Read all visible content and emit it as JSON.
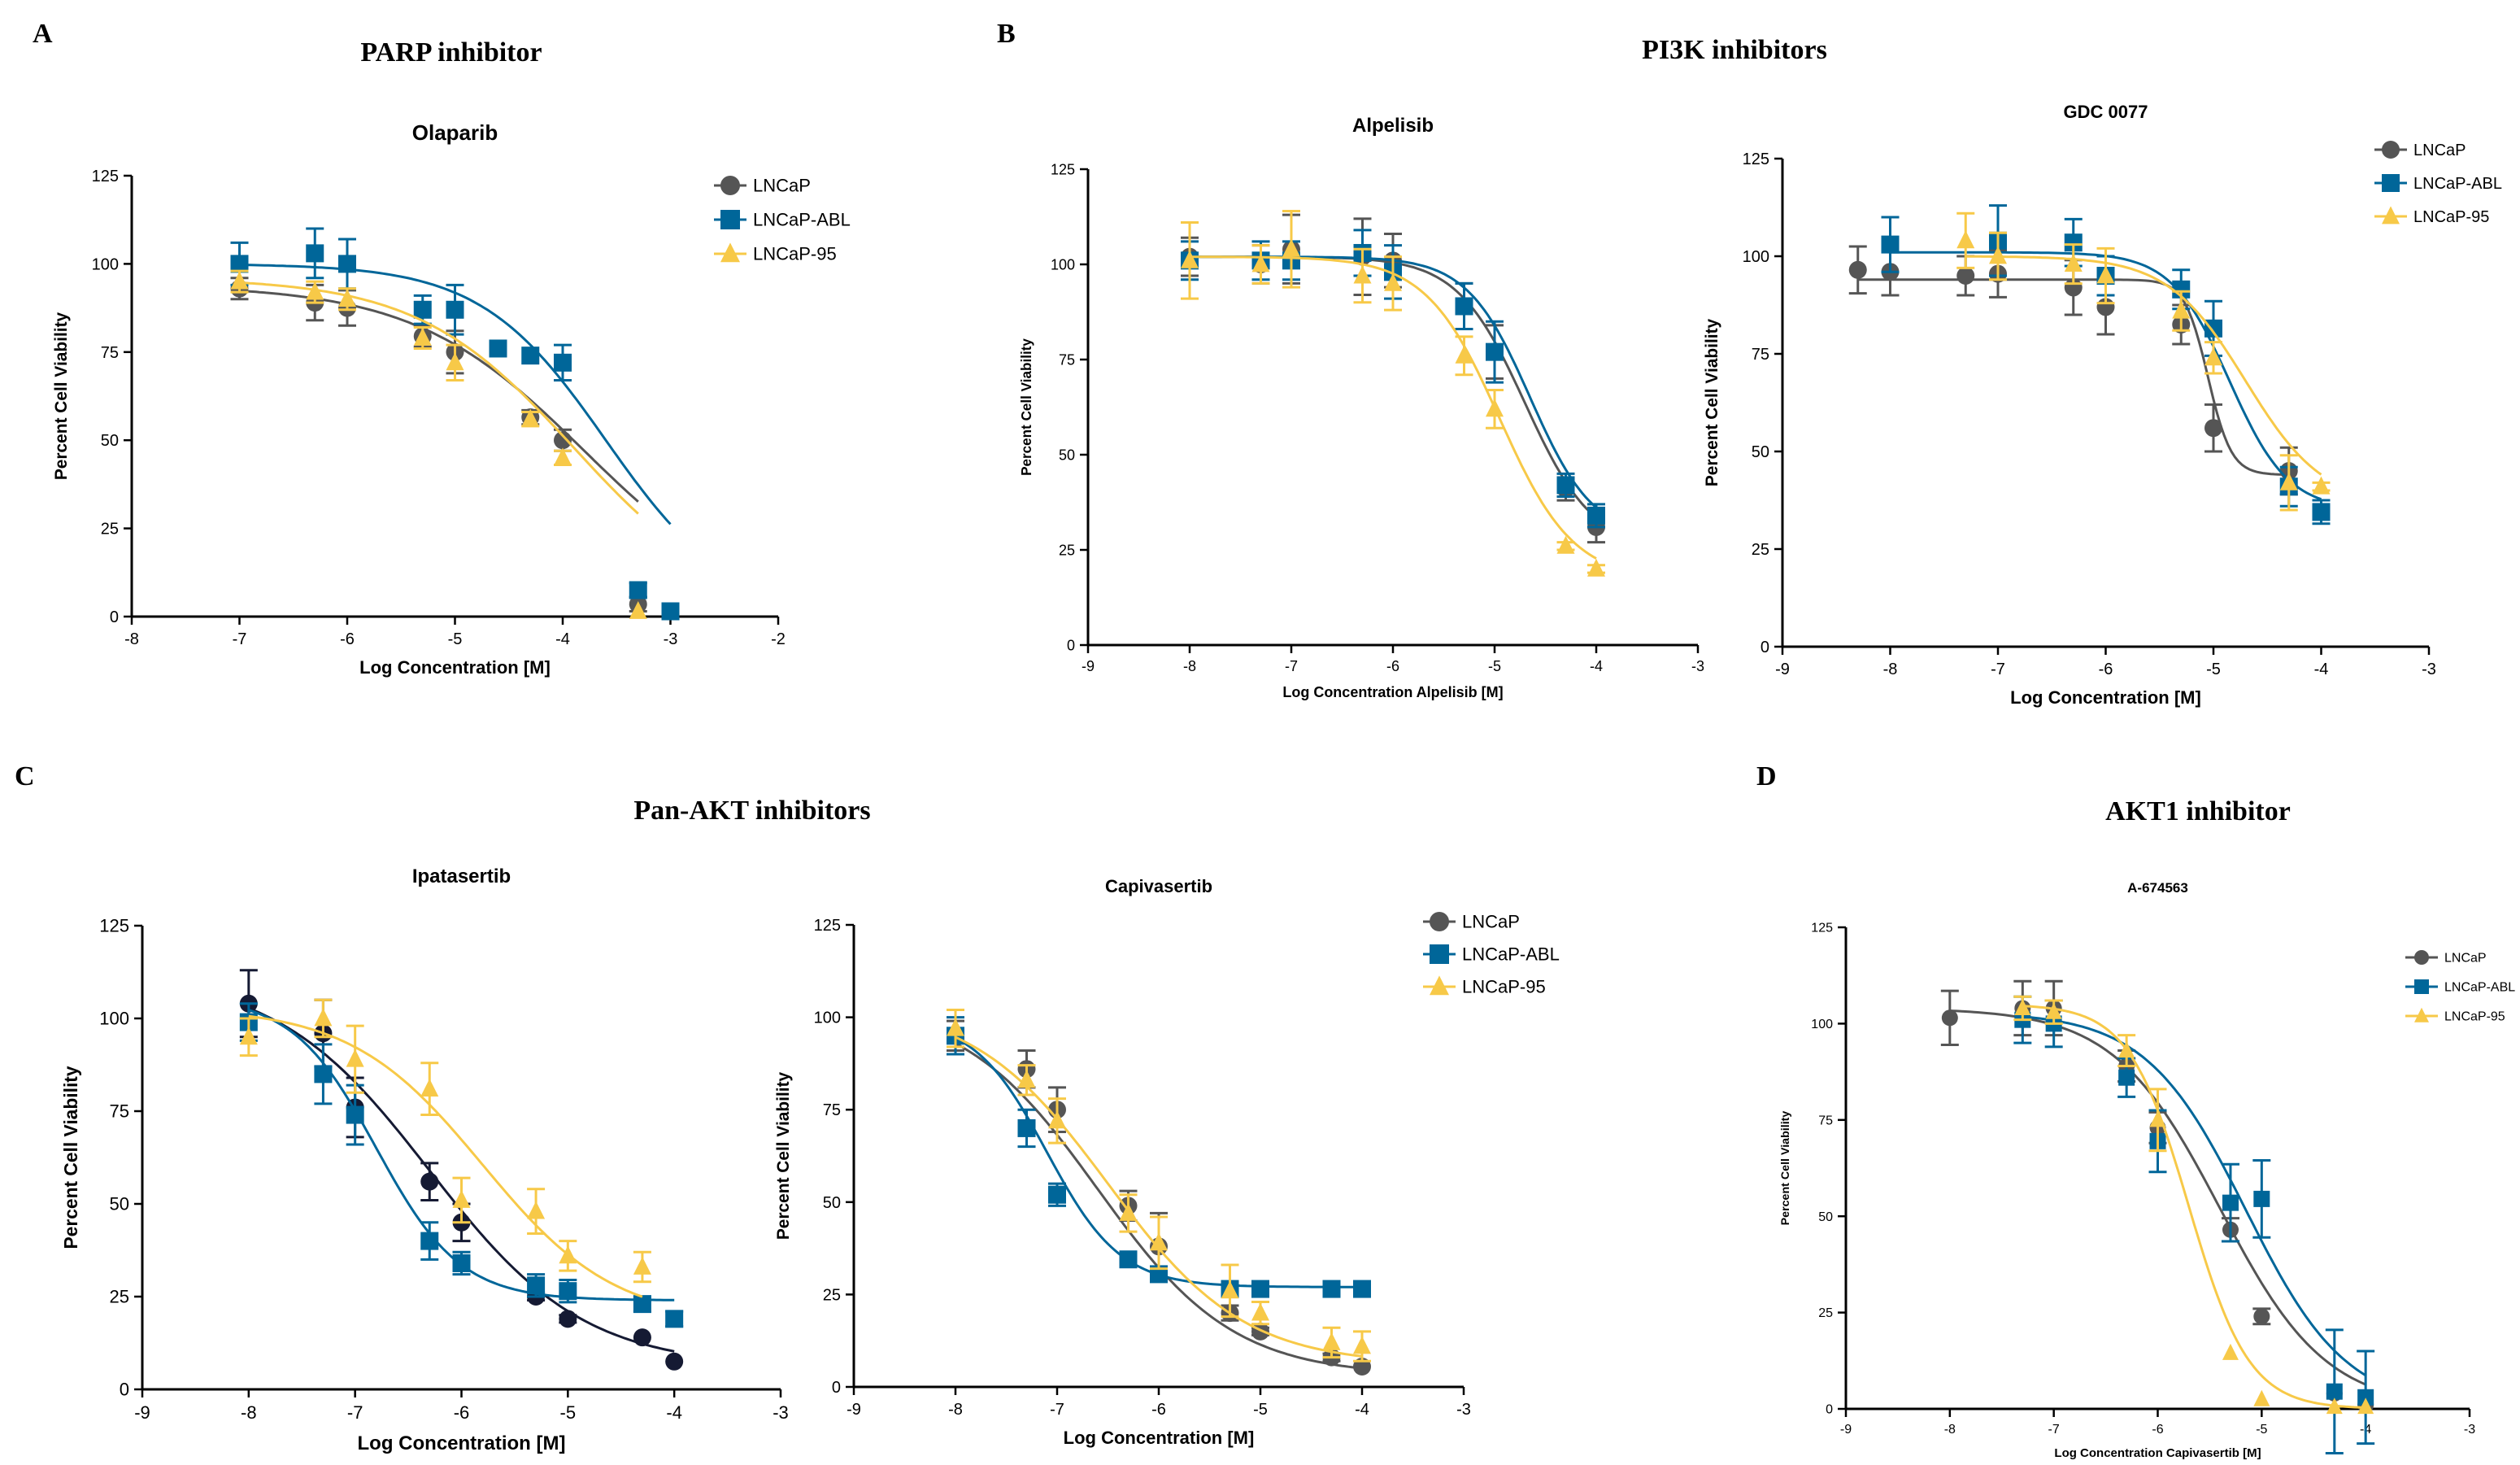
{
  "colors": {
    "LNCaP": "#555555",
    "LNCaP-ABL": "#006699",
    "LNCaP-95": "#F7C948",
    "LNCaP-dark": "#151A33"
  },
  "panels": [
    {
      "letter": "A",
      "title": "PARP inhibitor"
    },
    {
      "letter": "B",
      "title": "PI3K inhibitors"
    },
    {
      "letter": "C",
      "title": "Pan-AKT inhibitors"
    },
    {
      "letter": "D",
      "title": "AKT1 inhibitor"
    }
  ],
  "chart_data": [
    {
      "type": "scatter",
      "panel": "A",
      "title": "Olaparib",
      "xlabel": "Log Concentration [M]",
      "ylabel": "Percent Cell Viability",
      "xlim": [
        -8,
        -2
      ],
      "ylim": [
        0,
        125
      ],
      "xticks": [
        -8,
        -7,
        -6,
        -5,
        -4,
        -3,
        -2
      ],
      "yticks": [
        0,
        25,
        50,
        75,
        100,
        125
      ],
      "legend": "top-right",
      "series": [
        {
          "name": "LNCaP",
          "marker": "circle",
          "x": [
            -7,
            -6.3,
            -6,
            -5.3,
            -5,
            -4.3,
            -4,
            -3.3
          ],
          "y": [
            93,
            89,
            87.5,
            79.5,
            75,
            56.5,
            50,
            3.5
          ],
          "err": [
            3,
            5,
            5,
            3,
            6,
            2,
            3,
            2
          ],
          "curve": {
            "top": 94,
            "bottom": 0,
            "ec50": -3.8,
            "hill": 0.55
          }
        },
        {
          "name": "LNCaP-ABL",
          "marker": "square",
          "x": [
            -7,
            -6.3,
            -6,
            -5.3,
            -5,
            -4.6,
            -4.3,
            -4,
            -3.3,
            -3
          ],
          "y": [
            100,
            103,
            100,
            87,
            87,
            76,
            74,
            72,
            7.5,
            1.5
          ],
          "err": [
            6,
            7,
            7,
            4,
            7,
            0,
            0,
            5,
            2,
            0
          ],
          "curve": {
            "top": 100,
            "bottom": 0,
            "ec50": -3.6,
            "hill": 0.75
          }
        },
        {
          "name": "LNCaP-95",
          "marker": "triangle",
          "x": [
            -7,
            -6.3,
            -6,
            -5.3,
            -5,
            -4.3,
            -4,
            -3.3
          ],
          "y": [
            95,
            92,
            90,
            79,
            72,
            56,
            45,
            1.5
          ],
          "err": [
            3,
            3,
            3,
            3,
            5,
            2,
            2,
            0
          ],
          "curve": {
            "top": 96,
            "bottom": 0,
            "ec50": -3.9,
            "hill": 0.6
          }
        }
      ]
    },
    {
      "type": "scatter",
      "panel": "B",
      "title": "Alpelisib",
      "xlabel": "Log Concentration  Alpelisib [M]",
      "ylabel": "Percent Cell Viability",
      "xlim": [
        -9,
        -3
      ],
      "ylim": [
        0,
        125
      ],
      "xticks": [
        -9,
        -8,
        -7,
        -6,
        -5,
        -4,
        -3
      ],
      "yticks": [
        0,
        25,
        50,
        75,
        100,
        125
      ],
      "legend": "none",
      "series": [
        {
          "name": "LNCaP",
          "marker": "circle",
          "x": [
            -8,
            -7.3,
            -7,
            -6.3,
            -6,
            -5.3,
            -5,
            -4.3,
            -4
          ],
          "y": [
            102,
            100,
            104,
            102,
            101,
            89,
            77,
            41,
            31
          ],
          "err": [
            5,
            5,
            9,
            10,
            7,
            6,
            7,
            3,
            4
          ],
          "curve": {
            "top": 102,
            "bottom": 25,
            "ec50": -4.7,
            "hill": 1.3
          }
        },
        {
          "name": "LNCaP-ABL",
          "marker": "square",
          "x": [
            -8,
            -7.3,
            -7,
            -6.3,
            -6,
            -5.3,
            -5,
            -4.3,
            -4
          ],
          "y": [
            101,
            101,
            101,
            103,
            98,
            89,
            77,
            42,
            34
          ],
          "err": [
            5,
            5,
            5,
            6,
            7,
            6,
            8,
            3,
            3
          ],
          "curve": {
            "top": 102,
            "bottom": 28,
            "ec50": -4.65,
            "hill": 1.4
          }
        },
        {
          "name": "LNCaP-95",
          "marker": "triangle",
          "x": [
            -8,
            -7.3,
            -7,
            -6.3,
            -6,
            -5.3,
            -5,
            -4.3,
            -4
          ],
          "y": [
            101,
            100,
            104,
            97,
            95,
            76,
            62,
            26,
            20
          ],
          "err": [
            10,
            5,
            10,
            7,
            7,
            5,
            5,
            1,
            1
          ],
          "curve": {
            "top": 102,
            "bottom": 17,
            "ec50": -4.95,
            "hill": 1.2
          }
        }
      ]
    },
    {
      "type": "scatter",
      "panel": "B",
      "title": "GDC 0077",
      "xlabel": "Log Concentration  [M]",
      "ylabel": "Percent Cell Viability",
      "xlim": [
        -9,
        -3
      ],
      "ylim": [
        0,
        125
      ],
      "xticks": [
        -9,
        -8,
        -7,
        -6,
        -5,
        -4,
        -3
      ],
      "yticks": [
        0,
        25,
        50,
        75,
        100,
        125
      ],
      "legend": "top-right",
      "series": [
        {
          "name": "LNCaP",
          "marker": "circle",
          "x": [
            -8.3,
            -8,
            -7.3,
            -7,
            -6.3,
            -6,
            -5.3,
            -5,
            -4.3
          ],
          "y": [
            96.5,
            96,
            95,
            95.5,
            92,
            87,
            82.5,
            56,
            45
          ],
          "err": [
            6,
            6,
            5,
            6,
            7,
            7,
            5,
            6,
            6
          ],
          "curve": {
            "top": 94,
            "bottom": 44,
            "ec50": -5.05,
            "hill": 4
          }
        },
        {
          "name": "LNCaP-ABL",
          "marker": "square",
          "x": [
            -8,
            -7,
            -6.3,
            -6,
            -5.3,
            -5,
            -4.3,
            -4
          ],
          "y": [
            103,
            104,
            103.5,
            95,
            91.5,
            81.5,
            41,
            34.5
          ],
          "err": [
            7,
            9,
            6,
            5,
            5,
            7,
            5,
            3
          ],
          "curve": {
            "top": 101,
            "bottom": 35,
            "ec50": -4.85,
            "hill": 1.6
          }
        },
        {
          "name": "LNCaP-95",
          "marker": "triangle",
          "x": [
            -7.3,
            -7,
            -6.3,
            -6,
            -5.3,
            -5,
            -4.3,
            -4
          ],
          "y": [
            104,
            100,
            98,
            95,
            86,
            74,
            42,
            41
          ],
          "err": [
            7,
            6,
            5,
            7,
            5,
            4,
            7,
            1
          ],
          "curve": {
            "top": 100,
            "bottom": 36,
            "ec50": -4.7,
            "hill": 1.2
          }
        }
      ]
    },
    {
      "type": "scatter",
      "panel": "C",
      "title": "Ipatasertib",
      "xlabel": "Log Concentration [M]",
      "ylabel": "Percent Cell Viability",
      "xlim": [
        -9,
        -3
      ],
      "ylim": [
        0,
        125
      ],
      "xticks": [
        -9,
        -8,
        -7,
        -6,
        -5,
        -4,
        -3
      ],
      "yticks": [
        0,
        25,
        50,
        75,
        100,
        125
      ],
      "legend": "none",
      "series": [
        {
          "name": "LNCaP",
          "marker": "circle",
          "color": "dark",
          "x": [
            -8,
            -7.3,
            -7,
            -6.3,
            -6,
            -5.3,
            -5,
            -4.3,
            -4
          ],
          "y": [
            104,
            96,
            76,
            56,
            45,
            25,
            19,
            14,
            7.5
          ],
          "err": [
            9,
            9,
            8,
            5,
            5,
            1,
            1,
            0,
            0
          ],
          "curve": {
            "top": 112,
            "bottom": 6,
            "ec50": -6.3,
            "hill": 0.6
          }
        },
        {
          "name": "LNCaP-ABL",
          "marker": "square",
          "x": [
            -8,
            -7.3,
            -7,
            -6.3,
            -6,
            -5.3,
            -5,
            -4.3,
            -4
          ],
          "y": [
            99,
            85,
            74,
            40,
            34,
            28,
            26.5,
            23,
            19
          ],
          "err": [
            5,
            8,
            8,
            5,
            3,
            3,
            3,
            2,
            2
          ],
          "curve": {
            "top": 106,
            "bottom": 24,
            "ec50": -6.8,
            "hill": 1.1
          }
        },
        {
          "name": "LNCaP-95",
          "marker": "triangle",
          "x": [
            -8,
            -7.3,
            -7,
            -6.3,
            -6,
            -5.3,
            -5,
            -4.3
          ],
          "y": [
            95,
            100,
            89,
            81,
            51,
            48,
            36,
            33
          ],
          "err": [
            5,
            5,
            9,
            7,
            6,
            6,
            4,
            4
          ],
          "curve": {
            "top": 103,
            "bottom": 18,
            "ec50": -5.8,
            "hill": 0.7
          }
        }
      ]
    },
    {
      "type": "scatter",
      "panel": "C",
      "title": "Capivasertib",
      "xlabel": "Log Concentration [M]",
      "ylabel": "Percent Cell Viability",
      "xlim": [
        -9,
        -3
      ],
      "ylim": [
        0,
        125
      ],
      "xticks": [
        -9,
        -8,
        -7,
        -6,
        -5,
        -4,
        -3
      ],
      "yticks": [
        0,
        25,
        50,
        75,
        100,
        125
      ],
      "legend": "top-right",
      "series": [
        {
          "name": "LNCaP",
          "marker": "circle",
          "x": [
            -8,
            -7.3,
            -7,
            -6.3,
            -6,
            -5.3,
            -5,
            -4.3,
            -4
          ],
          "y": [
            95,
            86,
            75,
            49,
            38,
            20,
            15,
            8,
            5.5
          ],
          "err": [
            4,
            5,
            6,
            4,
            9,
            2,
            1,
            1,
            0
          ],
          "curve": {
            "top": 104,
            "bottom": 3,
            "ec50": -6.6,
            "hill": 0.65
          }
        },
        {
          "name": "LNCaP-ABL",
          "marker": "square",
          "x": [
            -8,
            -7.3,
            -7,
            -6.3,
            -6,
            -5.3,
            -5,
            -4.3,
            -4
          ],
          "y": [
            95,
            70,
            52,
            34.5,
            30.5,
            26.5,
            26.5,
            26.5,
            26.5
          ],
          "err": [
            5,
            5,
            3,
            2,
            1,
            1,
            1,
            0,
            0
          ],
          "curve": {
            "top": 100,
            "bottom": 27,
            "ec50": -7.1,
            "hill": 1.2
          }
        },
        {
          "name": "LNCaP-95",
          "marker": "triangle",
          "x": [
            -8,
            -7.3,
            -7,
            -6.3,
            -6,
            -5.3,
            -5,
            -4.3,
            -4
          ],
          "y": [
            97,
            83,
            72,
            47,
            39,
            26,
            20,
            12,
            11
          ],
          "err": [
            5,
            4,
            6,
            5,
            7,
            7,
            3,
            4,
            4
          ],
          "curve": {
            "top": 104,
            "bottom": 6,
            "ec50": -6.5,
            "hill": 0.65
          }
        }
      ]
    },
    {
      "type": "scatter",
      "panel": "D",
      "title": "A-674563",
      "xlabel": "Log Concentration Capivasertib [M]",
      "ylabel": "Percent Cell Viability",
      "xlim": [
        -9,
        -3
      ],
      "ylim": [
        0,
        125
      ],
      "xticks": [
        -9,
        -8,
        -7,
        -6,
        -5,
        -4,
        -3
      ],
      "yticks": [
        0,
        25,
        50,
        75,
        100,
        125
      ],
      "legend": "top-right",
      "series": [
        {
          "name": "LNCaP",
          "marker": "circle",
          "x": [
            -8,
            -7.3,
            -7,
            -6.3,
            -6,
            -5.3,
            -5,
            -4.3,
            -4
          ],
          "y": [
            101.5,
            104,
            104,
            89,
            73,
            46.5,
            24,
            4,
            1
          ],
          "err": [
            7,
            7,
            7,
            4,
            4,
            3,
            2,
            0,
            0
          ],
          "curve": {
            "top": 104,
            "bottom": 0,
            "ec50": -5.4,
            "hill": 0.85
          }
        },
        {
          "name": "LNCaP-ABL",
          "marker": "square",
          "x": [
            -7.3,
            -7,
            -6.3,
            -6,
            -5.3,
            -5,
            -4.3,
            -4
          ],
          "y": [
            101,
            100,
            86,
            69.5,
            53.5,
            54.5,
            4.5,
            3
          ],
          "err": [
            6,
            6,
            5,
            8,
            10,
            10,
            16,
            12
          ],
          "curve": {
            "top": 103,
            "bottom": 0,
            "ec50": -5.15,
            "hill": 0.9
          }
        },
        {
          "name": "LNCaP-95",
          "marker": "triangle",
          "x": [
            -7.3,
            -7,
            -6.3,
            -6,
            -5.3,
            -5,
            -4.3,
            -4
          ],
          "y": [
            104,
            103,
            93,
            75,
            14.5,
            2.5,
            0.5,
            0.5
          ],
          "err": [
            3,
            3,
            4,
            8,
            0,
            0,
            0,
            0
          ],
          "curve": {
            "top": 105,
            "bottom": 0,
            "ec50": -5.7,
            "hill": 1.5
          }
        }
      ]
    }
  ]
}
